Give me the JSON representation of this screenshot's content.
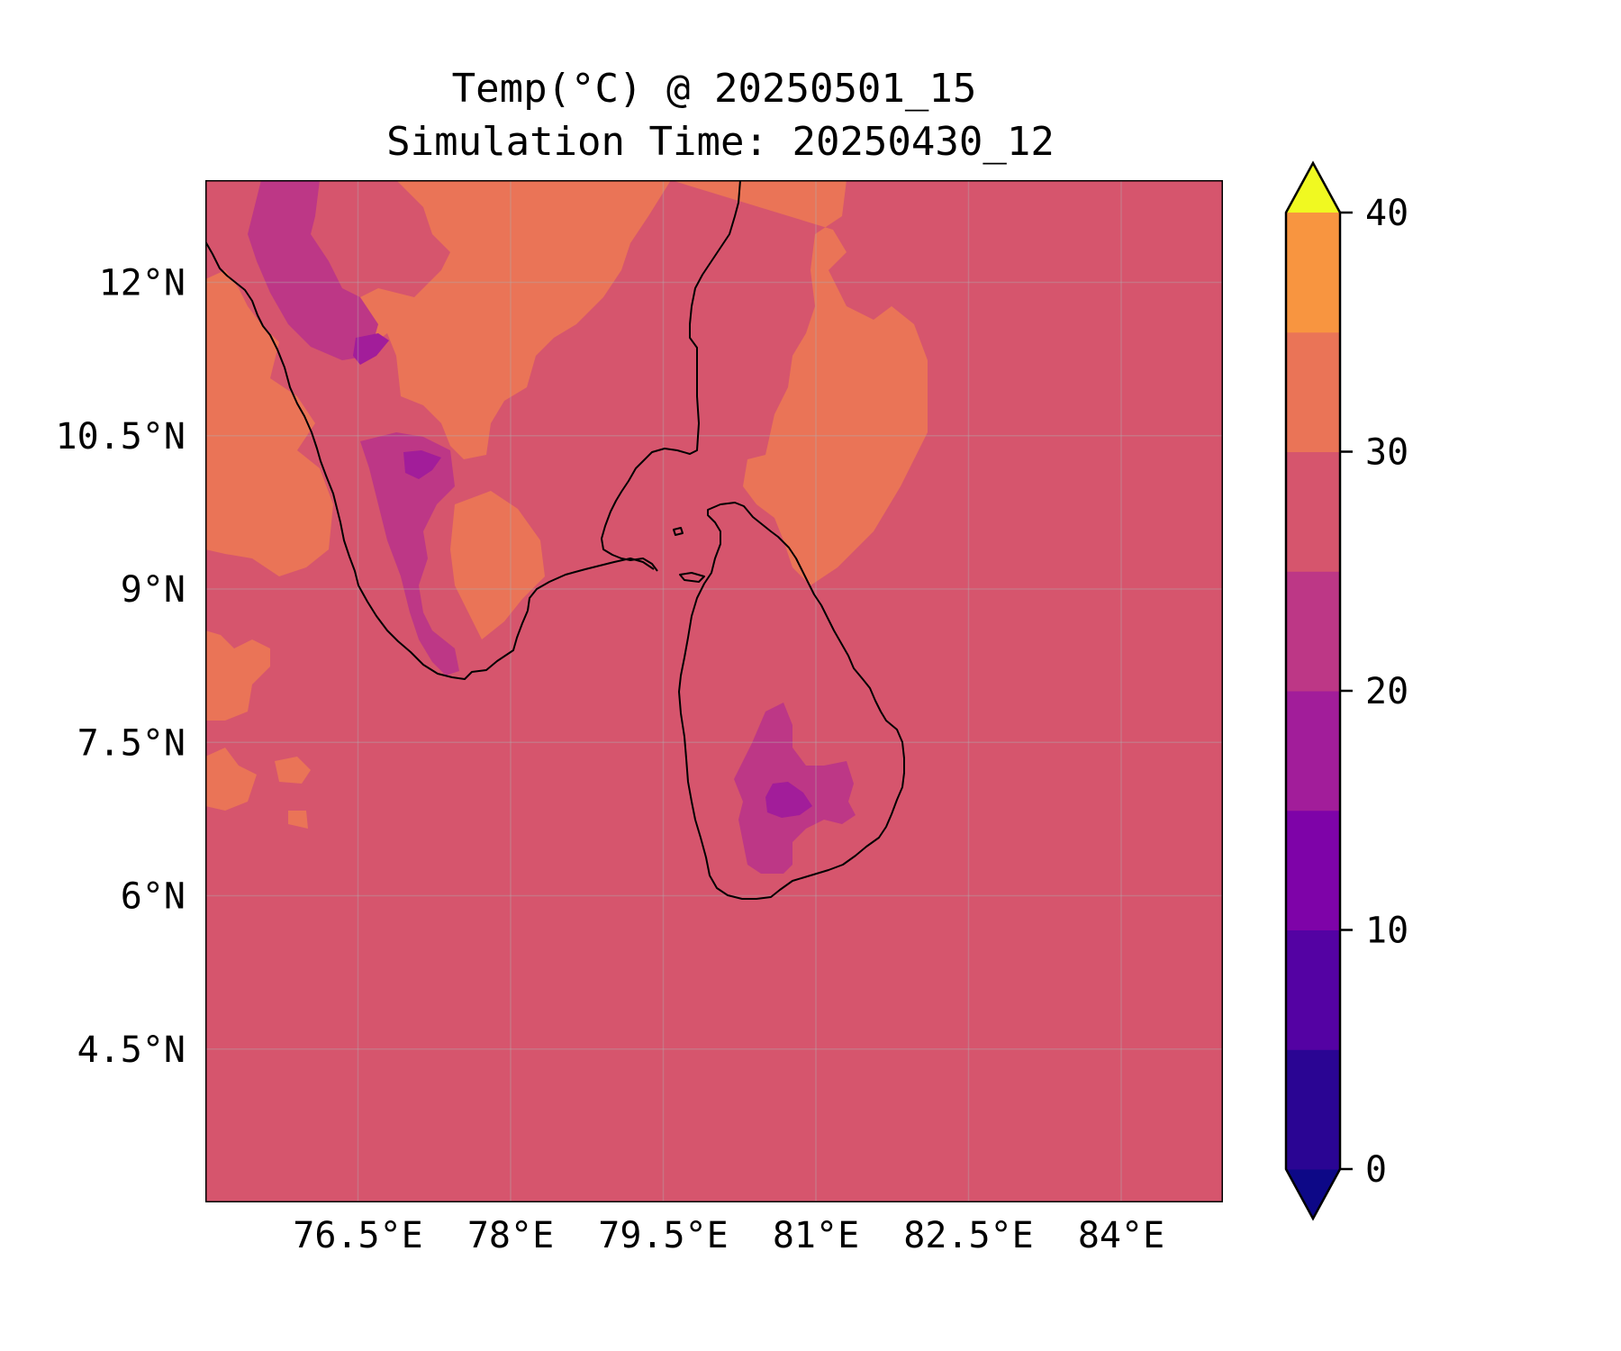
{
  "title": {
    "line1": "Temp(°C) @ 20250501_15",
    "line2": "Simulation Time: 20250430_12"
  },
  "map": {
    "extent_lon": [
      75.0,
      85.0
    ],
    "extent_lat": [
      3.0,
      13.0
    ],
    "background_level": "25-30",
    "lon_ticks": [
      76.5,
      78,
      79.5,
      81,
      82.5,
      84
    ],
    "lon_tick_labels": [
      "76.5°E",
      "78°E",
      "79.5°E",
      "81°E",
      "82.5°E",
      "84°E"
    ],
    "lat_ticks": [
      12,
      10.5,
      9,
      7.5,
      6,
      4.5
    ],
    "lat_tick_labels": [
      "12°N",
      "10.5°N",
      "9°N",
      "7.5°N",
      "6°N",
      "4.5°N"
    ],
    "gridlines": true
  },
  "colorbar": {
    "levels": [
      -5,
      0,
      5,
      10,
      15,
      20,
      25,
      30,
      35,
      40,
      45
    ],
    "colors": [
      "#0d0887",
      "#2a0593",
      "#5402a3",
      "#7e03a8",
      "#a21d9a",
      "#bd3786",
      "#d6556d",
      "#ea7457",
      "#f89540",
      "#fdb42f",
      "#f0f921"
    ],
    "extend": "both",
    "tick_values": [
      0,
      10,
      20,
      30,
      40
    ],
    "tick_labels": [
      "0",
      "10",
      "20",
      "30",
      "40"
    ]
  },
  "chart_data": {
    "type": "heatmap",
    "title": "Temp(°C) @ 20250501_15",
    "subtitle": "Simulation Time: 20250430_12",
    "xlabel": "",
    "ylabel": "",
    "xlim": [
      75.0,
      85.0
    ],
    "ylim": [
      3.0,
      13.0
    ],
    "value_range": [
      -5,
      45
    ],
    "dominant_value_band": "25-30",
    "regions": [
      {
        "name_internal": "ocean",
        "band": "25-30"
      },
      {
        "name_internal": "west-ghats-highlands",
        "band": "20-25"
      },
      {
        "name_internal": "nilgiri-peak",
        "band": "15-20"
      },
      {
        "name_internal": "palani-peak",
        "band": "15-20"
      },
      {
        "name_internal": "sri-lanka-central-highlands",
        "band": "20-25"
      },
      {
        "name_internal": "sri-lanka-peak",
        "band": "15-20"
      },
      {
        "name_internal": "tamil-nadu-plains",
        "band": "30-35"
      },
      {
        "name_internal": "bay-of-bengal-warm-patch",
        "band": "30-35"
      },
      {
        "name_internal": "arabian-sea-warm-patch",
        "band": "30-35"
      }
    ]
  }
}
